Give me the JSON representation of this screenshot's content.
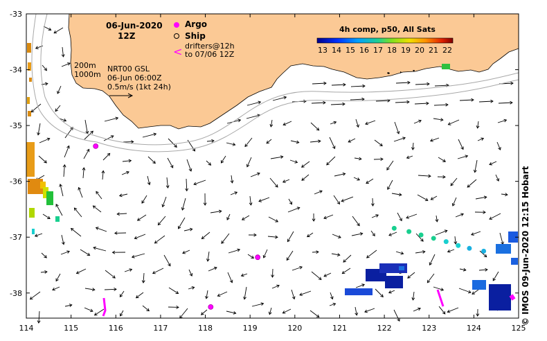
{
  "title_date": "06-Jun-2020",
  "title_time": "12Z",
  "legend": {
    "argo": "Argo",
    "ship": "Ship",
    "drifters_line1": "drifters@12h",
    "drifters_line2": "to 07/06 12Z",
    "argo_color": "#ff00ff",
    "drifter_color": "#ff00ff"
  },
  "notes": {
    "depth1": "200m",
    "depth2": "1000m",
    "product": "NRT00 GSL",
    "product_time": "06-Jun 06:00Z",
    "scale": "0.5m/s (1kt 24h)"
  },
  "colorbar": {
    "title": "4h comp, p50, All Sats",
    "ticks": [
      "13",
      "14",
      "15",
      "16",
      "17",
      "18",
      "19",
      "20",
      "21",
      "22"
    ]
  },
  "credit": "© IMOS 09-Jun-2020 12:15 Hobart",
  "axes": {
    "lon_ticks": [
      "114",
      "115",
      "116",
      "117",
      "118",
      "119",
      "120",
      "121",
      "122",
      "123",
      "124",
      "125"
    ],
    "lat_ticks": [
      "-33",
      "-34",
      "-35",
      "-36",
      "-37",
      "-38"
    ]
  },
  "colors": {
    "land": "#fbc995",
    "cold": "#0a1fa0",
    "mid": "#19cf8f",
    "warm": "#d98a10",
    "isobath": "#a8a8a8"
  },
  "argo_floats": [
    {
      "lon": 115.55,
      "lat": -35.37
    },
    {
      "lon": 118.12,
      "lat": -38.25
    },
    {
      "lon": 119.17,
      "lat": -37.36
    }
  ],
  "drifter_track": [
    {
      "lon": 122.22,
      "lat": -36.84
    },
    {
      "lon": 122.55,
      "lat": -36.9
    },
    {
      "lon": 122.82,
      "lat": -36.96
    },
    {
      "lon": 123.1,
      "lat": -37.02
    },
    {
      "lon": 123.38,
      "lat": -37.08
    },
    {
      "lon": 123.65,
      "lat": -37.15
    },
    {
      "lon": 123.9,
      "lat": -37.2
    },
    {
      "lon": 124.22,
      "lat": -37.25
    }
  ]
}
